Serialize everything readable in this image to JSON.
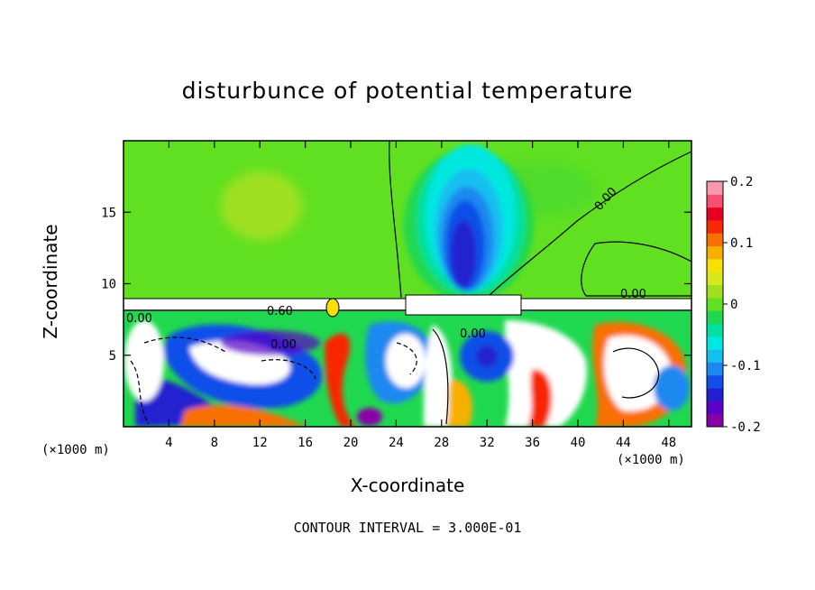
{
  "chart_data": {
    "type": "heatmap",
    "title": "disturbunce of potential temperature",
    "xlabel": "X-coordinate",
    "ylabel": "Z-coordinate",
    "x_unit_left": "(×1000 m)",
    "x_unit_right": "(×1000 m)",
    "xlim": [
      0,
      50
    ],
    "ylim": [
      0,
      20
    ],
    "x_ticks": [
      4,
      8,
      12,
      16,
      20,
      24,
      28,
      32,
      36,
      40,
      44,
      48
    ],
    "y_ticks": [
      5,
      10,
      15
    ],
    "colorbar": {
      "min": -0.2,
      "max": 0.2,
      "ticks": [
        "0.2",
        "0.1",
        "0",
        "-0.1",
        "-0.2"
      ],
      "colors": [
        "#8a00a8",
        "#5a00c8",
        "#2020d0",
        "#1050e8",
        "#1c88f0",
        "#14bff0",
        "#00e8e0",
        "#00e0a0",
        "#20d850",
        "#60e020",
        "#a0e020",
        "#d8e818",
        "#f8e000",
        "#f8b000",
        "#f87000",
        "#f82800",
        "#e80020",
        "#f85070",
        "#f898b0"
      ]
    },
    "contour_labels": [
      "0.00",
      "0.00",
      "0.00",
      "0.60",
      "0.00",
      "0.00"
    ],
    "footer": "CONTOUR INTERVAL = 3.000E-01"
  }
}
